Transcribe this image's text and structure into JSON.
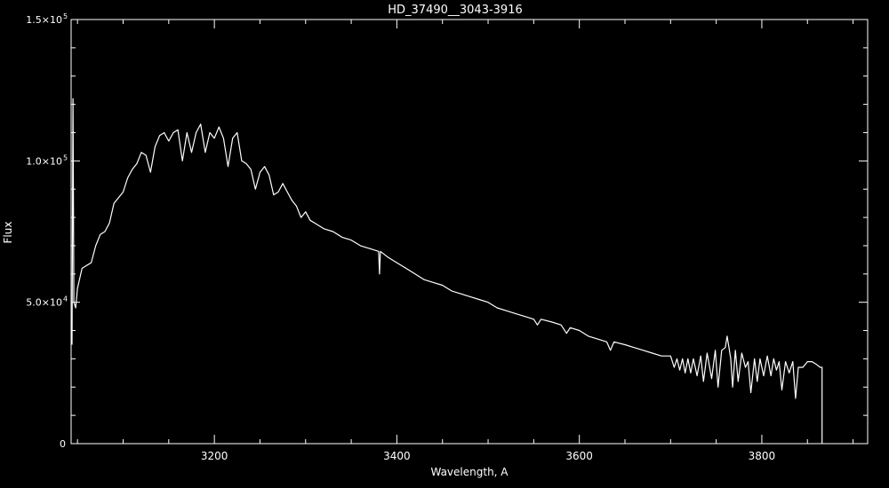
{
  "chart_data": {
    "type": "line",
    "title": "HD_37490__3043-3916",
    "xlabel": "Wavelength, A",
    "ylabel": "Flux",
    "xlim": [
      3043,
      3916
    ],
    "ylim": [
      0,
      150000
    ],
    "x_ticks": [
      {
        "value": 3200,
        "label": "3200"
      },
      {
        "value": 3400,
        "label": "3400"
      },
      {
        "value": 3600,
        "label": "3600"
      },
      {
        "value": 3800,
        "label": "3800"
      }
    ],
    "y_ticks": [
      {
        "value": 0,
        "mant": "0",
        "exp": ""
      },
      {
        "value": 50000,
        "mant": "5.0×10",
        "exp": "4"
      },
      {
        "value": 100000,
        "mant": "1.0×10",
        "exp": "5"
      },
      {
        "value": 150000,
        "mant": "1.5×10",
        "exp": "5"
      }
    ],
    "x_minor_step": 50,
    "y_minor_step": 10000,
    "grid": false,
    "colors": {
      "background": "#000000",
      "foreground": "#ffffff"
    },
    "series": [
      {
        "x": [
          3044,
          3045,
          3046,
          3048,
          3050,
          3055,
          3060,
          3065,
          3070,
          3075,
          3080,
          3085,
          3090,
          3095,
          3100,
          3105,
          3110,
          3115,
          3120,
          3125,
          3130,
          3135,
          3140,
          3145,
          3150,
          3155,
          3160,
          3165,
          3170,
          3175,
          3180,
          3185,
          3190,
          3195,
          3200,
          3205,
          3210,
          3215,
          3220,
          3225,
          3230,
          3235,
          3240,
          3245,
          3250,
          3255,
          3260,
          3265,
          3270,
          3275,
          3280,
          3285,
          3290,
          3295,
          3300,
          3305,
          3310,
          3320,
          3330,
          3340,
          3350,
          3360,
          3370,
          3380,
          3381,
          3382,
          3390,
          3400,
          3410,
          3420,
          3430,
          3440,
          3450,
          3460,
          3470,
          3480,
          3490,
          3500,
          3510,
          3520,
          3530,
          3540,
          3550,
          3554,
          3558,
          3570,
          3580,
          3586,
          3590,
          3600,
          3610,
          3620,
          3630,
          3634,
          3638,
          3650,
          3660,
          3670,
          3680,
          3690,
          3700,
          3704,
          3707,
          3710,
          3713,
          3716,
          3719,
          3722,
          3725,
          3729,
          3733,
          3736,
          3740,
          3745,
          3749,
          3752,
          3756,
          3760,
          3762,
          3764,
          3766,
          3768,
          3771,
          3774,
          3778,
          3782,
          3785,
          3788,
          3792,
          3795,
          3798,
          3802,
          3806,
          3810,
          3813,
          3816,
          3819,
          3822,
          3826,
          3830,
          3834,
          3837,
          3840,
          3845,
          3850,
          3855,
          3860,
          3864,
          3866,
          3866
        ],
        "y": [
          35000,
          122000,
          50000,
          48000,
          55000,
          62000,
          63000,
          64000,
          70000,
          74000,
          75000,
          78000,
          85000,
          87000,
          89000,
          94000,
          97000,
          99000,
          103000,
          102000,
          96000,
          105000,
          109000,
          110000,
          107000,
          110000,
          111000,
          100000,
          110000,
          103000,
          110000,
          113000,
          103000,
          110000,
          108000,
          112000,
          108000,
          98000,
          108000,
          110000,
          100000,
          99000,
          97000,
          90000,
          96000,
          98000,
          95000,
          88000,
          89000,
          92000,
          89000,
          86000,
          84000,
          80000,
          82000,
          79000,
          78000,
          76000,
          75000,
          73000,
          72000,
          70000,
          69000,
          68000,
          60000,
          68000,
          66000,
          64000,
          62000,
          60000,
          58000,
          57000,
          56000,
          54000,
          53000,
          52000,
          51000,
          50000,
          48000,
          47000,
          46000,
          45000,
          44000,
          42000,
          44000,
          43000,
          42000,
          39000,
          41000,
          40000,
          38000,
          37000,
          36000,
          33000,
          36000,
          35000,
          34000,
          33000,
          32000,
          31000,
          31000,
          27000,
          30000,
          26000,
          30000,
          25000,
          30000,
          25000,
          30000,
          24000,
          31000,
          22000,
          32000,
          23000,
          33000,
          20000,
          33000,
          34000,
          38000,
          34000,
          30000,
          20000,
          33000,
          22000,
          32000,
          27000,
          29000,
          18000,
          30000,
          22000,
          30000,
          24000,
          31000,
          24000,
          30000,
          26000,
          29000,
          19000,
          29000,
          25000,
          29000,
          16000,
          27000,
          27000,
          29000,
          29000,
          28000,
          27000,
          27000,
          0
        ]
      }
    ]
  }
}
